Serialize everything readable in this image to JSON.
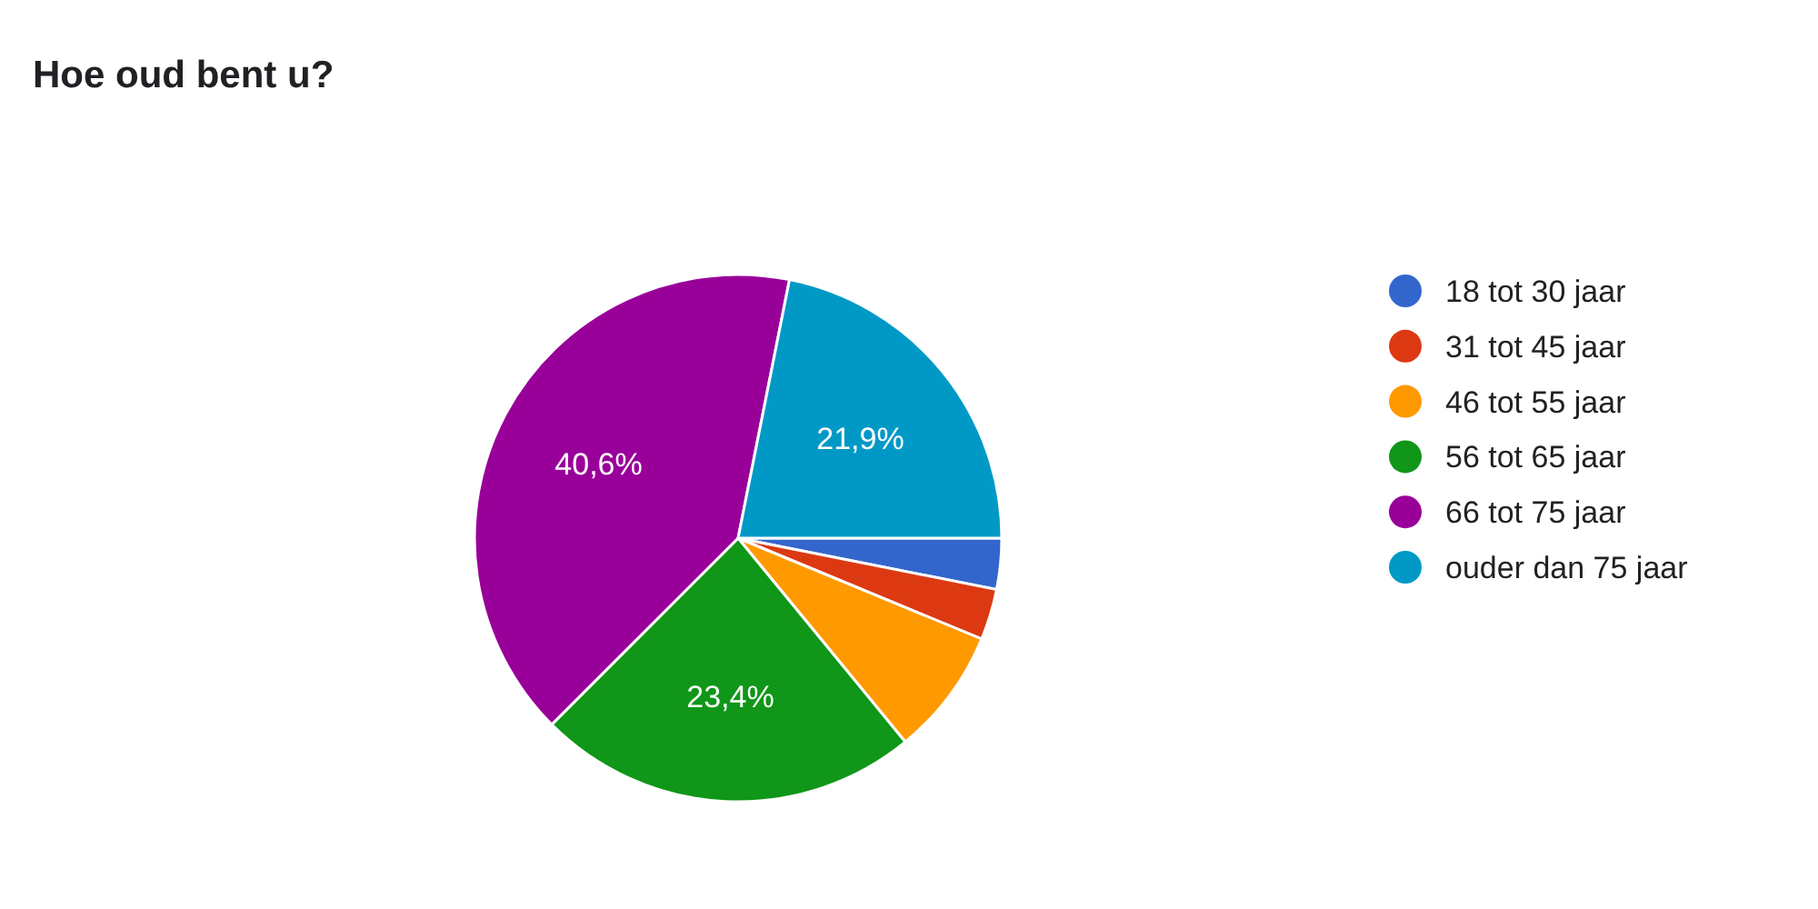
{
  "chart_data": {
    "type": "pie",
    "title": "Hoe oud bent u?",
    "categories": [
      "18 tot 30 jaar",
      "31 tot 45 jaar",
      "46 tot 55 jaar",
      "56 tot 65 jaar",
      "66 tot 75 jaar",
      "ouder dan 75 jaar"
    ],
    "values": [
      3.125,
      3.125,
      7.8125,
      23.4375,
      40.625,
      21.875
    ],
    "colors": [
      "#3366cc",
      "#dc3912",
      "#ff9900",
      "#109618",
      "#990099",
      "#0099c6"
    ],
    "value_labels": [
      null,
      null,
      null,
      "23,4%",
      "40,6%",
      "21,9%"
    ],
    "legend": "right"
  }
}
